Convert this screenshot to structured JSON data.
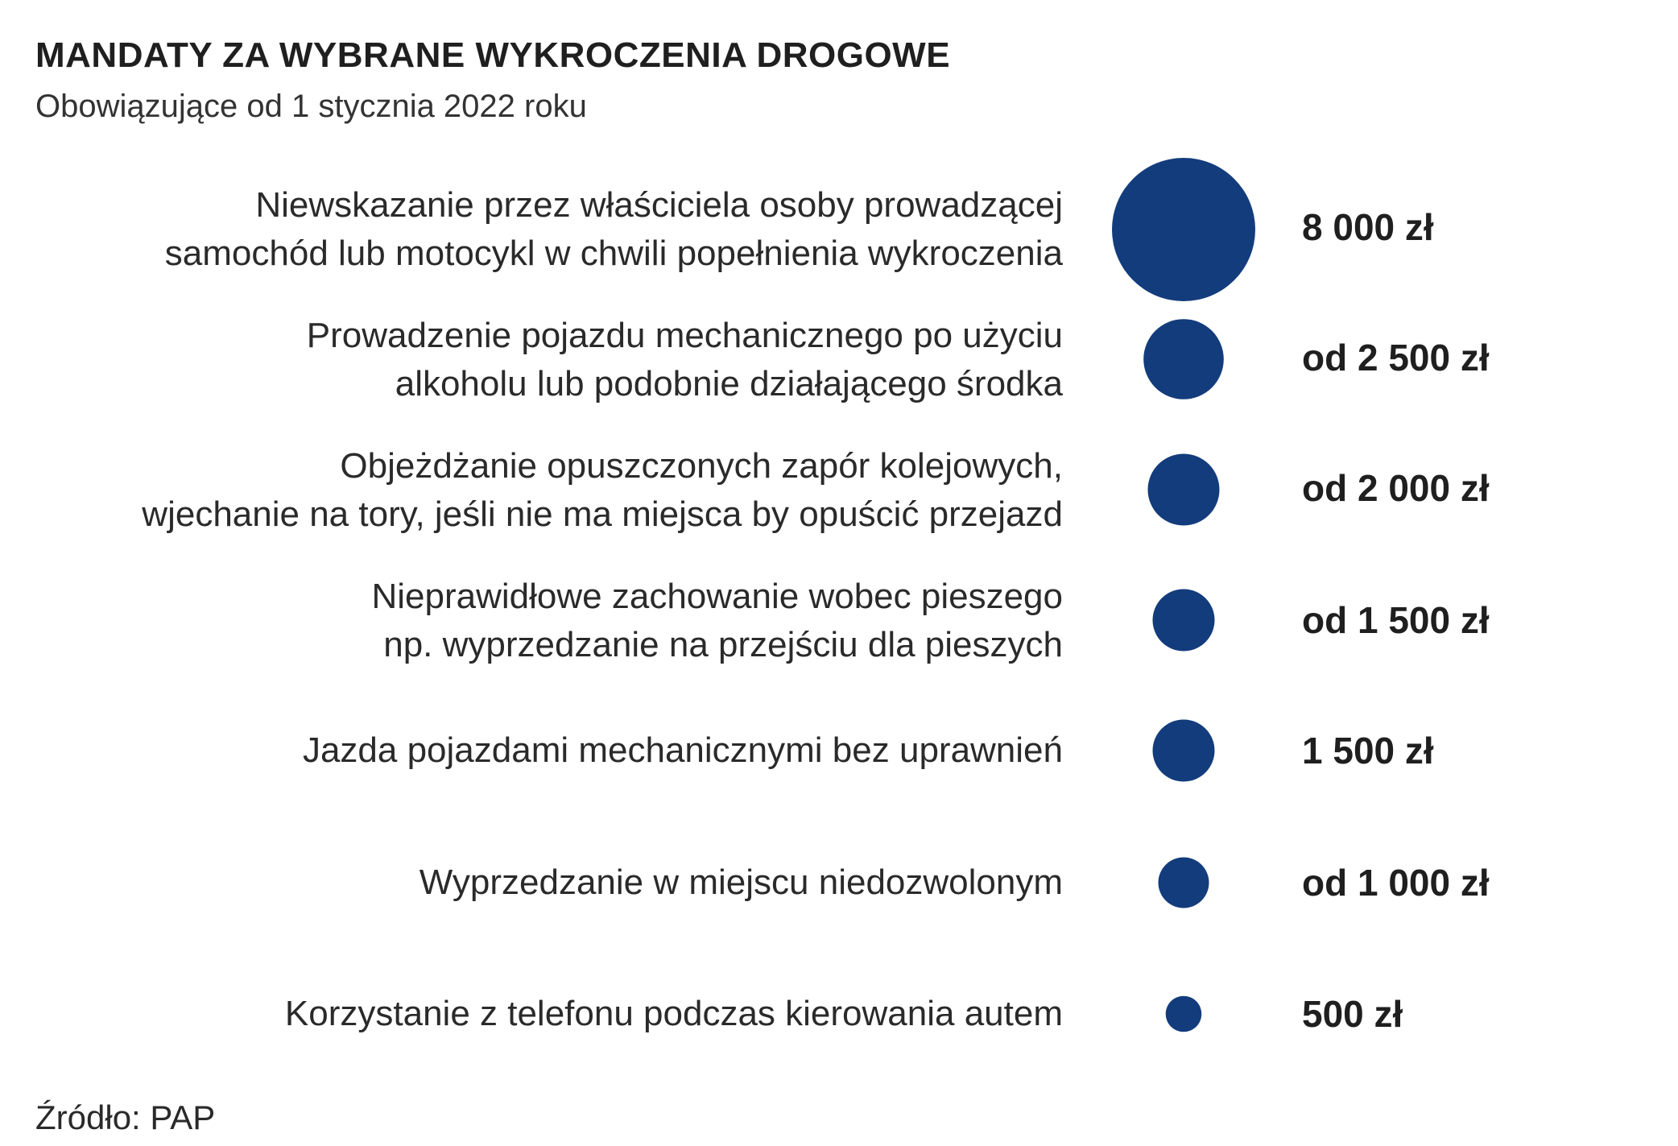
{
  "chart_data": {
    "type": "bubble",
    "title": "MANDATY ZA WYBRANE WYKROCZENIA DROGOWE",
    "subtitle": "Obowiązujące od 1 stycznia 2022 roku",
    "bubble_color": "#133c7c",
    "categories": [
      [
        "Niewskazanie przez właściciela osoby prowadzącej",
        "samochód lub motocykl w chwili popełnienia wykroczenia"
      ],
      [
        "Prowadzenie pojazdu mechanicznego po użyciu",
        "alkoholu lub podobnie działającego środka"
      ],
      [
        "Objeżdżanie opuszczonych zapór kolejowych,",
        "wjechanie na tory, jeśli nie ma miejsca by opuścić przejazd"
      ],
      [
        "Nieprawidłowe zachowanie wobec pieszego",
        "np. wyprzedzanie na przejściu dla pieszych"
      ],
      [
        "Jazda pojazdami mechanicznymi bez uprawnień"
      ],
      [
        "Wyprzedzanie w miejscu niedozwolonym"
      ],
      [
        "Korzystanie z telefonu podczas kierowania autem"
      ]
    ],
    "values": [
      8000,
      2500,
      2000,
      1500,
      1500,
      1000,
      500
    ],
    "value_labels": [
      "8 000 zł",
      "od 2 500 zł",
      "od 2 000 zł",
      "od 1 500 zł",
      "1 500 zł",
      "od 1 000 zł",
      "500 zł"
    ],
    "unit": "zł"
  },
  "source": "Źródło: PAP"
}
